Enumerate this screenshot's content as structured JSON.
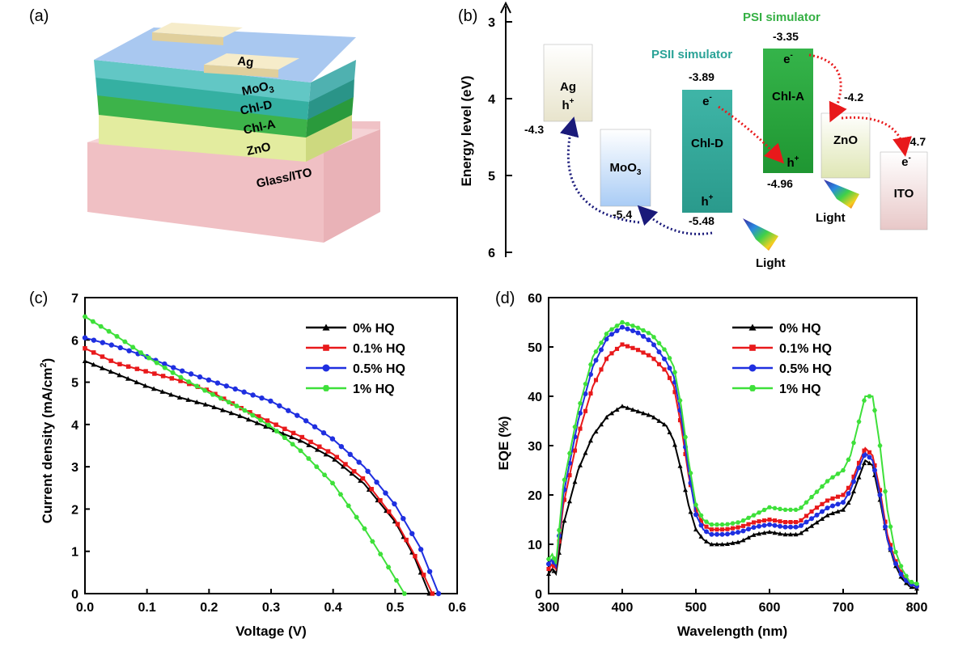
{
  "panels": {
    "a": "(a)",
    "b": "(b)",
    "c": "(c)",
    "d": "(d)"
  },
  "device": {
    "layers": [
      "Ag",
      "MoO3",
      "Chl-D",
      "Chl-A",
      "ZnO",
      "Glass/ITO"
    ],
    "colors": {
      "top": "#a7c6ef",
      "moo3": "#5ec4c1",
      "chld": "#35a99f",
      "chla": "#3aa84a",
      "zno": "#d4e2a0",
      "glass": "#f0c2c6",
      "ag": "#f3e6c5"
    }
  },
  "energy": {
    "ylabel": "Energy level (eV)",
    "yticks": [
      "3",
      "4",
      "5",
      "6"
    ],
    "psi": "PSI simulator",
    "psii": "PSII simulator",
    "boxes": {
      "ag": {
        "name": "Ag",
        "carrier": "h+",
        "level": "-4.3"
      },
      "moo3": {
        "name": "MoO3",
        "level": "-5.4"
      },
      "chld": {
        "name": "Chl-D",
        "top": "-3.89",
        "bottom": "-5.48",
        "e": "e-",
        "h": "h+"
      },
      "chla": {
        "name": "Chl-A",
        "top": "-3.35",
        "bottom": "-4.96",
        "e": "e-",
        "h": "h+"
      },
      "zno": {
        "name": "ZnO",
        "level": "-4.2"
      },
      "ito": {
        "name": "ITO",
        "carrier": "e-",
        "level": "-4.7"
      }
    },
    "light": "Light"
  },
  "chart_data": [
    {
      "type": "line",
      "xlabel": "Voltage (V)",
      "ylabel": "Current density (mA/cm2)",
      "xlim": [
        0,
        0.6
      ],
      "ylim": [
        0,
        7
      ],
      "xticks": [
        "0.0",
        "0.1",
        "0.2",
        "0.3",
        "0.4",
        "0.5",
        "0.6"
      ],
      "yticks": [
        "0",
        "1",
        "2",
        "3",
        "4",
        "5",
        "6",
        "7"
      ],
      "legend_position": "top-right",
      "series": [
        {
          "name": "0% HQ",
          "color": "#000000",
          "marker": "triangle",
          "x": [
            0,
            0.05,
            0.1,
            0.15,
            0.2,
            0.25,
            0.3,
            0.35,
            0.4,
            0.45,
            0.5,
            0.53,
            0.555
          ],
          "y": [
            5.5,
            5.2,
            4.9,
            4.65,
            4.45,
            4.2,
            3.9,
            3.6,
            3.2,
            2.6,
            1.7,
            0.9,
            0
          ]
        },
        {
          "name": "0.1% HQ",
          "color": "#e8191b",
          "marker": "square",
          "x": [
            0,
            0.05,
            0.1,
            0.15,
            0.2,
            0.25,
            0.3,
            0.35,
            0.4,
            0.45,
            0.5,
            0.53,
            0.56
          ],
          "y": [
            5.8,
            5.45,
            5.25,
            5.05,
            4.8,
            4.4,
            4.05,
            3.7,
            3.3,
            2.7,
            1.75,
            0.95,
            0
          ]
        },
        {
          "name": "0.5%  HQ",
          "color": "#1f2fe0",
          "marker": "circle",
          "x": [
            0,
            0.05,
            0.1,
            0.15,
            0.2,
            0.25,
            0.3,
            0.35,
            0.4,
            0.45,
            0.5,
            0.54,
            0.57
          ],
          "y": [
            6.05,
            5.85,
            5.6,
            5.3,
            5.05,
            4.8,
            4.55,
            4.15,
            3.65,
            3.0,
            2.1,
            1.1,
            0
          ]
        },
        {
          "name": "1% HQ",
          "color": "#3ee03a",
          "marker": "hexagon",
          "x": [
            0,
            0.05,
            0.1,
            0.15,
            0.2,
            0.25,
            0.3,
            0.35,
            0.4,
            0.45,
            0.48,
            0.515
          ],
          "y": [
            6.55,
            6.1,
            5.6,
            5.15,
            4.75,
            4.4,
            3.95,
            3.35,
            2.6,
            1.55,
            0.85,
            0
          ]
        }
      ]
    },
    {
      "type": "line",
      "xlabel": "Wavelength (nm)",
      "ylabel": "EQE (%)",
      "xlim": [
        300,
        800
      ],
      "ylim": [
        0,
        60
      ],
      "xticks": [
        "300",
        "400",
        "500",
        "600",
        "700",
        "800"
      ],
      "yticks": [
        "0",
        "10",
        "20",
        "30",
        "40",
        "50",
        "60"
      ],
      "legend_position": "top-right",
      "x": [
        300,
        305,
        310,
        320,
        340,
        360,
        380,
        400,
        420,
        440,
        460,
        470,
        480,
        490,
        500,
        510,
        520,
        540,
        560,
        580,
        600,
        620,
        640,
        660,
        680,
        700,
        710,
        720,
        730,
        740,
        750,
        760,
        770,
        780,
        790,
        800
      ],
      "series": [
        {
          "name": "0% HQ",
          "color": "#000000",
          "marker": "triangle",
          "y": [
            4,
            5,
            4,
            14,
            25,
            32,
            36,
            38,
            37,
            36,
            34,
            31,
            25,
            18,
            13,
            11,
            10,
            10,
            10.5,
            12,
            12.5,
            12,
            12,
            14,
            16,
            17,
            19,
            23,
            27,
            26,
            19,
            11,
            6,
            3,
            1.5,
            1
          ]
        },
        {
          "name": "0.1% HQ",
          "color": "#e8191b",
          "marker": "square",
          "y": [
            5,
            6,
            5,
            18,
            32,
            42,
            48,
            50.5,
            49.5,
            48,
            45,
            42,
            34,
            24,
            17,
            14,
            13,
            13,
            13.5,
            14.5,
            15,
            14.5,
            14.5,
            17,
            19,
            20,
            22,
            26,
            29.5,
            28,
            21,
            12,
            7,
            4,
            2,
            1.5
          ]
        },
        {
          "name": "0.5% HQ",
          "color": "#1f2fe0",
          "marker": "circle",
          "y": [
            6,
            7,
            5.5,
            20,
            35,
            46,
            52,
            54,
            53,
            51,
            47,
            44,
            36,
            25,
            16,
            13,
            12,
            12,
            12.5,
            13.5,
            14,
            13.5,
            13.5,
            15.5,
            17.5,
            18.5,
            21,
            25,
            28.5,
            27,
            20,
            11,
            6.5,
            3.5,
            2,
            1.5
          ]
        },
        {
          "name": "1% HQ",
          "color": "#3ee03a",
          "marker": "hexagon",
          "y": [
            7,
            8,
            6,
            22,
            37,
            48,
            53,
            55,
            54,
            52.5,
            49,
            46,
            38,
            27,
            18,
            15,
            14,
            14,
            14.5,
            16,
            17.5,
            17,
            17,
            20,
            23,
            25,
            28,
            34,
            40,
            40,
            30,
            17,
            9,
            5,
            2.5,
            2
          ]
        }
      ]
    }
  ]
}
